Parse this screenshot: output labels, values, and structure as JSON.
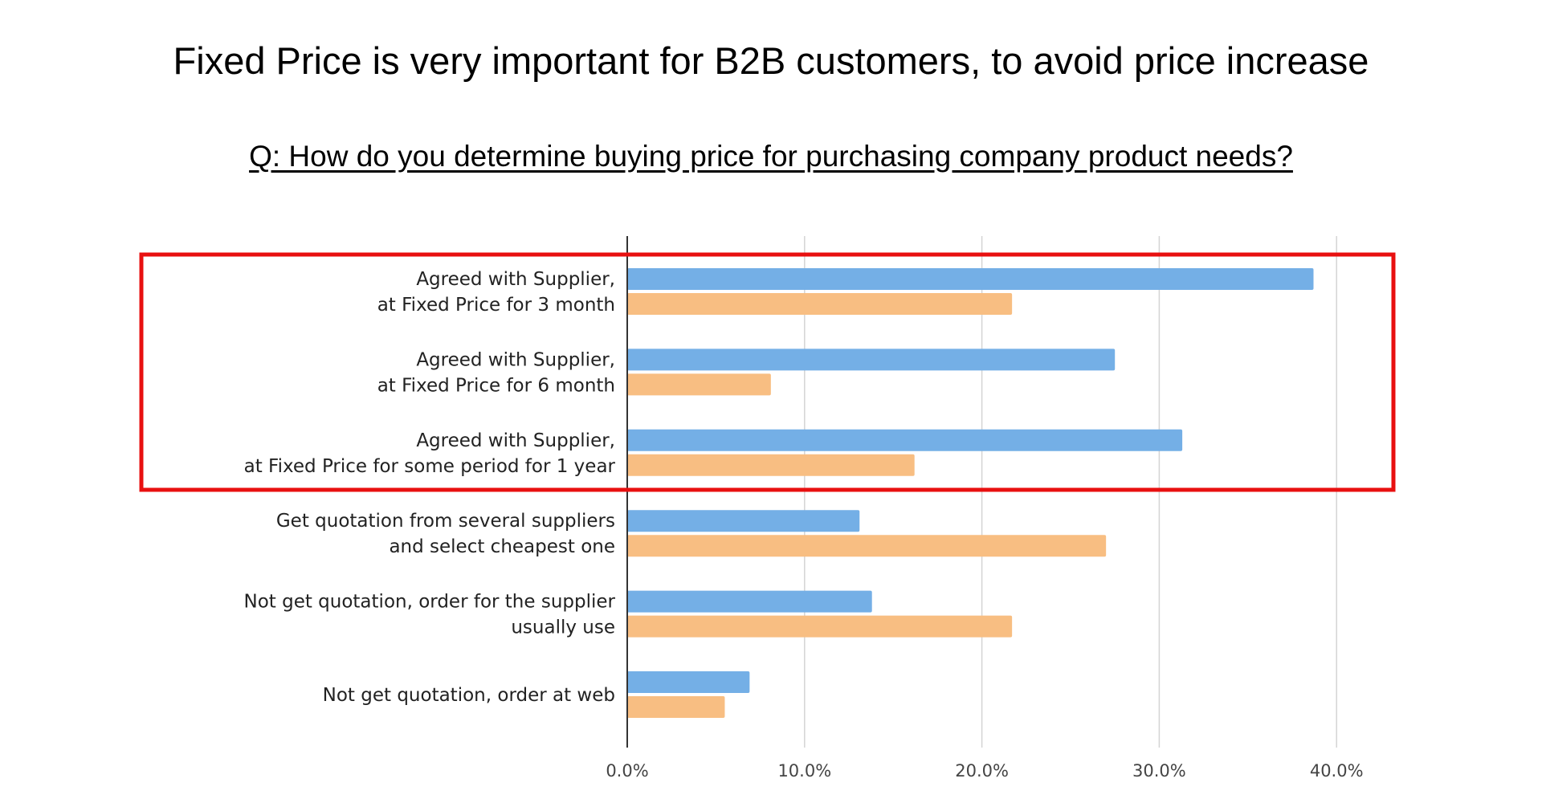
{
  "chart_data": {
    "type": "bar",
    "orientation": "horizontal",
    "title": "Fixed Price is very important for B2B customers, to avoid price increase",
    "subtitle": "Q: How do you determine buying price for purchasing company product needs?",
    "categories": [
      [
        "Agreed with Supplier,",
        "at Fixed Price for 3 month"
      ],
      [
        "Agreed with Supplier,",
        "at Fixed Price for 6 month"
      ],
      [
        "Agreed with Supplier,",
        "at Fixed Price for some period for 1 year"
      ],
      [
        "Get quotation from several suppliers",
        "and select cheapest one"
      ],
      [
        "Not get quotation, order for the supplier",
        "usually use"
      ],
      [
        "Not get quotation, order at web"
      ]
    ],
    "series": [
      {
        "color": "#74afe6",
        "values": [
          38.7,
          27.5,
          31.3,
          13.1,
          13.8,
          6.9
        ]
      },
      {
        "color": "#f8be82",
        "values": [
          21.7,
          8.1,
          16.2,
          27.0,
          21.7,
          5.5
        ]
      }
    ],
    "xlim": [
      0,
      40
    ],
    "x_ticks": [
      "0.0%",
      "10.0%",
      "20.0%",
      "30.0%",
      "40.0%"
    ],
    "grid": true,
    "legend": "none",
    "highlight": {
      "color": "#e81010",
      "categories": [
        0,
        1,
        2
      ]
    }
  }
}
